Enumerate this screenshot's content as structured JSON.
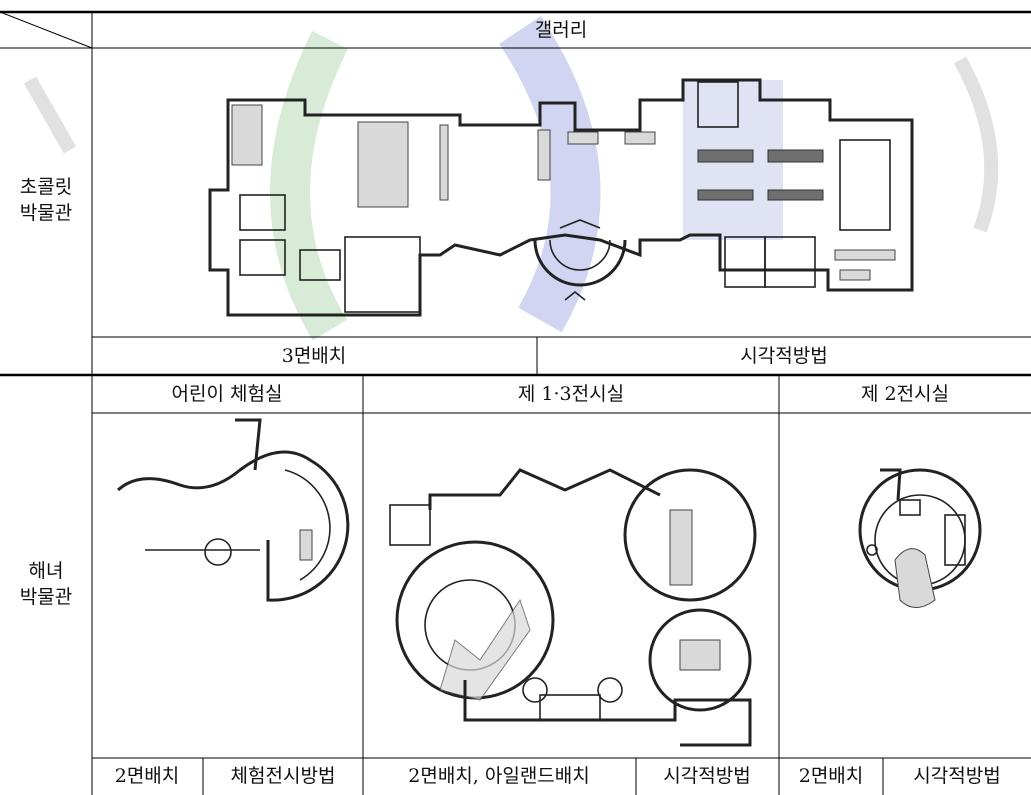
{
  "rows": [
    {
      "museum": [
        "초콜릿",
        "박물관"
      ],
      "sections": [
        {
          "name": "갤러리",
          "notes": [
            "3면배치",
            "시각적방법"
          ]
        }
      ]
    },
    {
      "museum": [
        "해녀",
        "박물관"
      ],
      "sections": [
        {
          "name": "어린이 체험실",
          "notes": [
            "2면배치",
            "체험전시방법"
          ]
        },
        {
          "name": "제 1·3전시실",
          "notes": [
            "2면배치, 아일랜드배치",
            "시각적방법"
          ]
        },
        {
          "name": "제 2전시실",
          "notes": [
            "2면배치",
            "시각적방법"
          ]
        }
      ]
    }
  ]
}
